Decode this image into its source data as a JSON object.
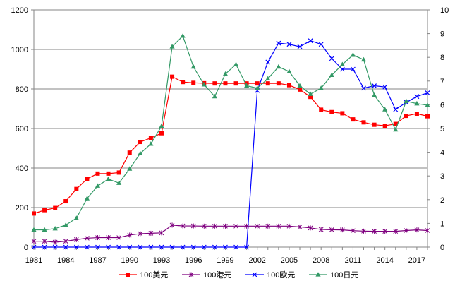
{
  "chart_data": {
    "type": "line",
    "x": [
      1981,
      1982,
      1983,
      1984,
      1985,
      1986,
      1987,
      1988,
      1989,
      1990,
      1991,
      1992,
      1993,
      1994,
      1995,
      1996,
      1997,
      1998,
      1999,
      2000,
      2001,
      2002,
      2003,
      2004,
      2005,
      2006,
      2007,
      2008,
      2009,
      2010,
      2011,
      2012,
      2013,
      2014,
      2015,
      2016,
      2017,
      2018
    ],
    "x_tick_labels": [
      "1981",
      "1984",
      "1987",
      "1990",
      "1993",
      "1996",
      "1999",
      "2002",
      "2005",
      "2008",
      "2011",
      "2014",
      "2017"
    ],
    "x_tick_years": [
      1981,
      1984,
      1987,
      1990,
      1993,
      1996,
      1999,
      2002,
      2005,
      2008,
      2011,
      2014,
      2017
    ],
    "y_left": {
      "min": 0,
      "max": 1200,
      "ticks": [
        "0",
        "200",
        "400",
        "600",
        "800",
        "1000",
        "1200"
      ]
    },
    "y_right": {
      "min": 0,
      "max": 10,
      "ticks": [
        "0",
        "1",
        "2",
        "3",
        "4",
        "5",
        "6",
        "7",
        "8",
        "9",
        "10"
      ]
    },
    "grid": true,
    "legend_position": "bottom",
    "series": [
      {
        "name": "100美元",
        "axis": "left",
        "color": "#ff0000",
        "marker": "square",
        "values": [
          170,
          187,
          198,
          232,
          294,
          345,
          372,
          372,
          377,
          478,
          532,
          552,
          576,
          862,
          835,
          831,
          829,
          828,
          828,
          828,
          828,
          828,
          828,
          828,
          819,
          797,
          760,
          695,
          683,
          677,
          646,
          631,
          619,
          614,
          623,
          664,
          675,
          662
        ]
      },
      {
        "name": "100港元",
        "axis": "left",
        "color": "#7f007f",
        "marker": "star",
        "values": [
          30,
          30,
          25,
          30,
          38,
          45,
          48,
          48,
          48,
          61,
          68,
          70,
          72,
          111,
          107,
          107,
          106,
          106,
          106,
          106,
          106,
          106,
          106,
          106,
          106,
          102,
          97,
          89,
          88,
          87,
          83,
          81,
          80,
          80,
          80,
          84,
          87,
          84
        ]
      },
      {
        "name": "100欧元",
        "axis": "right",
        "color": "#0000ff",
        "marker": "x",
        "values": [
          0,
          0,
          0,
          0,
          0,
          0,
          0,
          0,
          0,
          0,
          0,
          0,
          0,
          0,
          0,
          0,
          0,
          0,
          0,
          0,
          0,
          6.6,
          7.8,
          8.6,
          8.55,
          8.45,
          8.7,
          8.55,
          7.95,
          7.5,
          7.5,
          6.7,
          6.8,
          6.75,
          5.8,
          6.1,
          6.35,
          6.5
        ]
      },
      {
        "name": "100日元",
        "axis": "right",
        "color": "#339966",
        "marker": "triangle",
        "values": [
          0.73,
          0.73,
          0.78,
          0.93,
          1.22,
          2.05,
          2.58,
          2.87,
          2.7,
          3.3,
          3.95,
          4.35,
          5.1,
          8.45,
          8.9,
          7.6,
          6.85,
          6.35,
          7.3,
          7.7,
          6.8,
          6.7,
          7.1,
          7.6,
          7.4,
          6.8,
          6.45,
          6.7,
          7.25,
          7.7,
          8.1,
          7.9,
          6.4,
          5.8,
          4.95,
          6.15,
          6.05,
          5.98
        ]
      }
    ]
  }
}
